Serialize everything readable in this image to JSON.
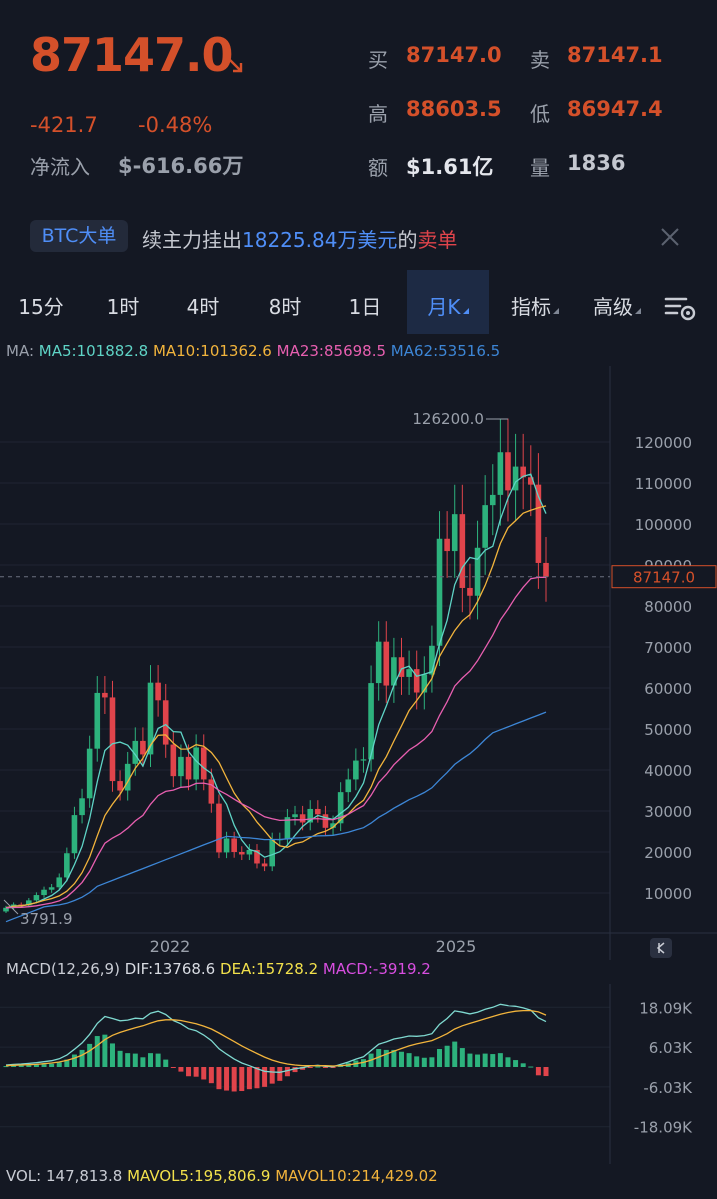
{
  "quote": {
    "price": "87147.0",
    "change": "-421.7",
    "change_pct": "-0.48%",
    "netflow_label": "净流入",
    "netflow_value": "$-616.66万",
    "bid_label": "买",
    "bid": "87147.0",
    "ask_label": "卖",
    "ask": "87147.1",
    "high_label": "高",
    "high": "88603.5",
    "low_label": "低",
    "low": "86947.4",
    "amount_label": "额",
    "amount": "$1.61亿",
    "volume_label": "量",
    "volume": "1836"
  },
  "notice": {
    "tag": "BTC大单",
    "prefix": "续主力挂出",
    "amount": "18225.84万美元",
    "middle": "的",
    "side": "卖单"
  },
  "tabs": [
    "15分",
    "1时",
    "4时",
    "8时",
    "1日",
    "月K",
    "指标",
    "高级"
  ],
  "active_tab": "月K",
  "indicators": {
    "ma_label": "MA:",
    "ma5": "MA5:101882.8",
    "ma10": "MA10:101362.6",
    "ma23": "MA23:85698.5",
    "ma62": "MA62:53516.5",
    "macd_label": "MACD(12,26,9)",
    "dif": "DIF:13768.6",
    "dea": "DEA:15728.2",
    "macd": "MACD:-3919.2",
    "vol": "VOL: 147,813.8",
    "mavol5": "MAVOL5:195,806.9",
    "mavol10": "MAVOL10:214,429.02"
  },
  "colors": {
    "up": "#2db27d",
    "down": "#e0444b",
    "ma5": "#5fd4c6",
    "ma10": "#f2b43c",
    "ma23": "#e85fb0",
    "ma62": "#3d86d6",
    "accent": "#4f8ef7",
    "price_red": "#d4502a"
  },
  "chart_data": {
    "type": "candlestick",
    "y_ticks": [
      "120000",
      "110000",
      "100000",
      "90000",
      "80000",
      "70000",
      "60000",
      "50000",
      "40000",
      "30000",
      "20000",
      "10000"
    ],
    "x_ticks": [
      "2022",
      "2025"
    ],
    "current_price_label": "87147.0",
    "max_label": "126200.0",
    "min_label": "3791.9",
    "macd_ticks": [
      "18.09K",
      "6.03K",
      "-6.03K",
      "-18.09K"
    ],
    "monthly_closes": [
      6400,
      7200,
      7000,
      8200,
      9500,
      10800,
      11400,
      13800,
      19700,
      29000,
      33100,
      45200,
      58800,
      57700,
      37300,
      35000,
      41500,
      47100,
      43800,
      61300,
      57000,
      46200,
      38500,
      43200,
      37700,
      45500,
      37700,
      31800,
      19900,
      23300,
      20000,
      19400,
      20500,
      17200,
      16500,
      23100,
      23100,
      28500,
      29200,
      27200,
      30500,
      29200,
      25900,
      27000,
      34600,
      37700,
      42300,
      42600,
      61200,
      71300,
      60600,
      67500,
      62700,
      64600,
      58900,
      63300,
      70300,
      96400,
      93400,
      102400,
      84400,
      82500,
      94200,
      104600,
      107100,
      117500,
      108200,
      114000,
      111400,
      109600,
      90500,
      87147
    ],
    "macd_dif": [
      600,
      800,
      900,
      1100,
      1300,
      1600,
      1900,
      2500,
      3600,
      5400,
      7300,
      9900,
      13200,
      15300,
      14700,
      14000,
      14200,
      14800,
      14600,
      16300,
      16900,
      15900,
      14100,
      13100,
      11600,
      11000,
      9700,
      8000,
      5500,
      3900,
      2400,
      1200,
      400,
      -500,
      -1300,
      -1500,
      -1600,
      -1100,
      -500,
      -200,
      300,
      500,
      200,
      100,
      800,
      1500,
      2400,
      3100,
      5000,
      6900,
      7600,
      8500,
      8900,
      9400,
      9300,
      9500,
      10100,
      12900,
      14700,
      17000,
      16600,
      16100,
      16600,
      17500,
      18100,
      19000,
      18600,
      18400,
      17900,
      17200,
      14900,
      13769
    ],
    "macd_dea": [
      400,
      500,
      600,
      700,
      800,
      1000,
      1200,
      1500,
      2000,
      2700,
      3600,
      4900,
      6500,
      8300,
      9600,
      10500,
      11200,
      11900,
      12500,
      13300,
      14000,
      14300,
      14300,
      14100,
      13600,
      13100,
      12400,
      11500,
      10300,
      9000,
      7700,
      6400,
      5200,
      4100,
      3000,
      2100,
      1400,
      900,
      600,
      400,
      400,
      400,
      400,
      300,
      400,
      600,
      1000,
      1400,
      2100,
      3000,
      3900,
      4800,
      5600,
      6400,
      7000,
      7500,
      8000,
      9000,
      10100,
      11500,
      12500,
      13200,
      13900,
      14600,
      15300,
      16000,
      16500,
      16900,
      17100,
      17100,
      16700,
      15728
    ]
  }
}
